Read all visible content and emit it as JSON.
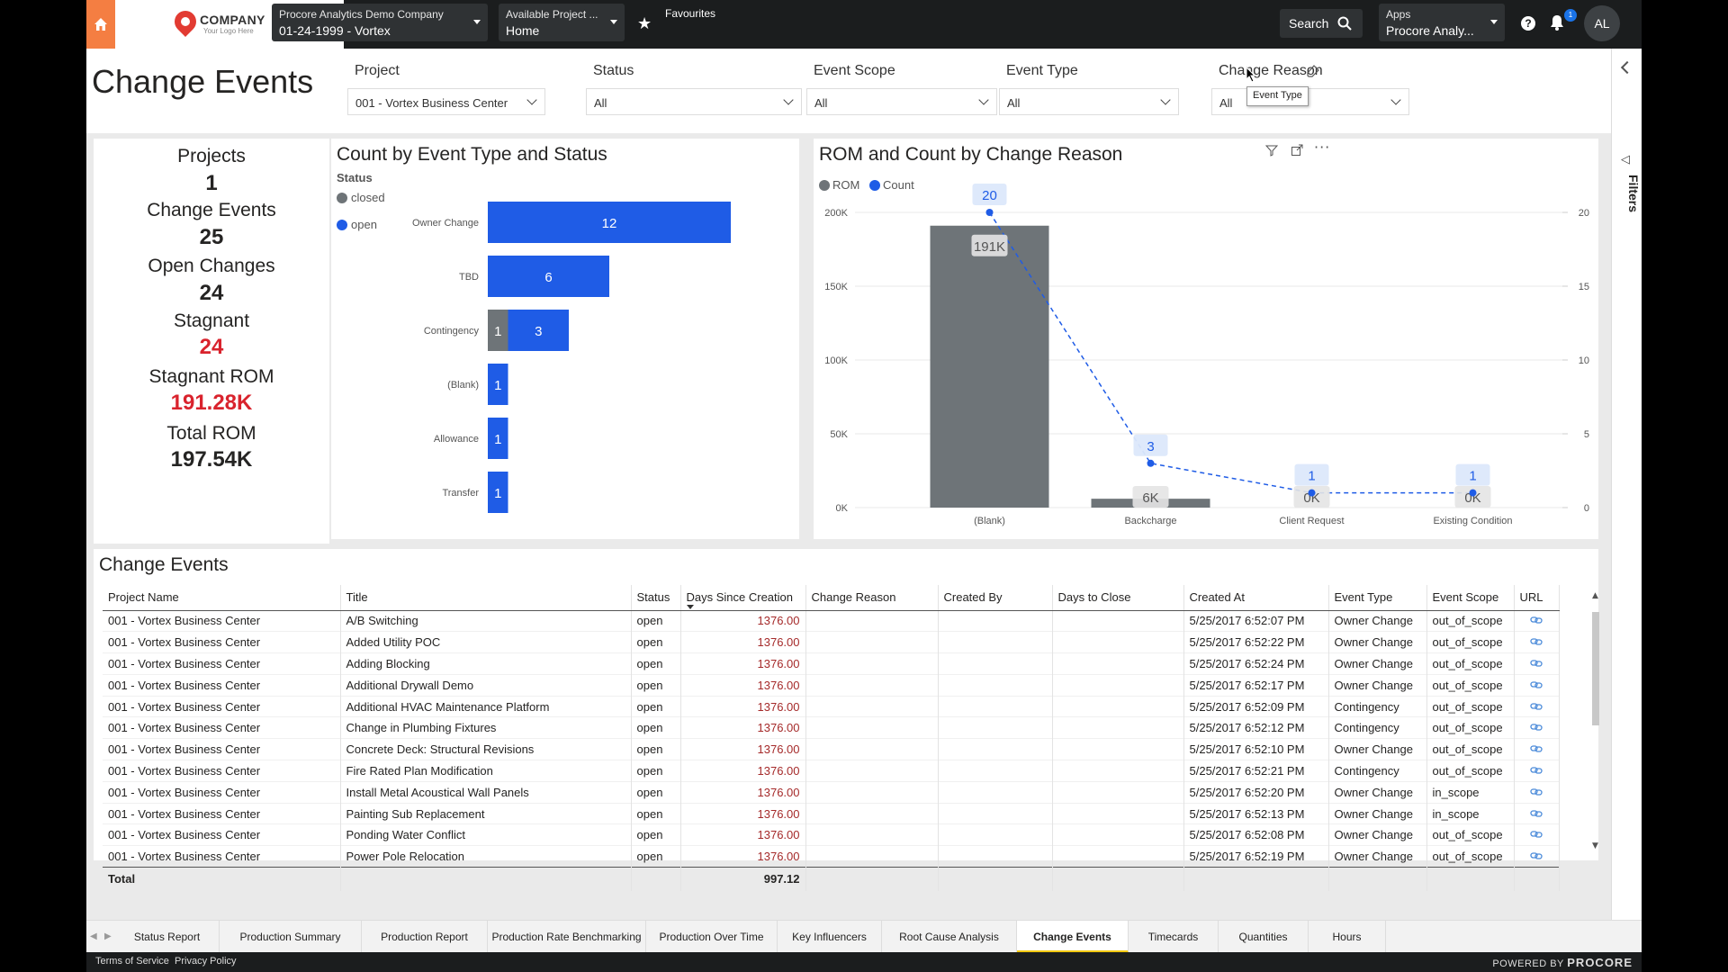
{
  "header": {
    "company_logo": "COMPANY",
    "company_logo_sub": "Your Logo Here",
    "company_dd": {
      "line1": "Procore Analytics Demo Company",
      "line2": "01-24-1999 - Vortex"
    },
    "project_dd": {
      "line1": "Available Project ...",
      "line2": "Home"
    },
    "favourites": "Favourites",
    "search": "Search",
    "apps_dd": {
      "line1": "Apps",
      "line2": "Procore Analy..."
    },
    "help": "?",
    "notifications_count": "1",
    "avatar_initials": "AL",
    "brand_color": "#f47e42"
  },
  "page_title": "Change Events",
  "slicers": [
    {
      "label": "Project",
      "value": "001 - Vortex Business Center"
    },
    {
      "label": "Status",
      "value": "All"
    },
    {
      "label": "Event Scope",
      "value": "All"
    },
    {
      "label": "Event Type",
      "value": "All"
    },
    {
      "label": "Change Reason",
      "value": "All"
    }
  ],
  "tooltip": "Event Type",
  "kpis": [
    {
      "label": "Projects",
      "value": "1",
      "highlight": false
    },
    {
      "label": "Change Events",
      "value": "25",
      "highlight": false
    },
    {
      "label": "Open Changes",
      "value": "24",
      "highlight": false
    },
    {
      "label": "Stagnant",
      "value": "24",
      "highlight": true
    },
    {
      "label": "Stagnant ROM",
      "value": "191.28K",
      "highlight": true
    },
    {
      "label": "Total ROM",
      "value": "197.54K",
      "highlight": false
    }
  ],
  "filters_pane_label": "Filters",
  "chart_data": [
    {
      "type": "bar",
      "orientation": "horizontal",
      "stacked": true,
      "title": "Count by Event Type and Status",
      "legend_title": "Status",
      "categories": [
        "Owner Change",
        "TBD",
        "Contingency",
        "(Blank)",
        "Allowance",
        "Transfer"
      ],
      "series": [
        {
          "name": "closed",
          "color": "#6e7478",
          "values": [
            0,
            0,
            1,
            0,
            0,
            0
          ]
        },
        {
          "name": "open",
          "color": "#1f5ce6",
          "values": [
            12,
            6,
            3,
            1,
            1,
            1
          ]
        }
      ]
    },
    {
      "type": "bar",
      "combo_line": true,
      "title": "ROM and Count by Change Reason",
      "categories": [
        "(Blank)",
        "Backcharge",
        "Client Request",
        "Existing Condition"
      ],
      "series": [
        {
          "name": "ROM",
          "color": "#6e7478",
          "axis": "left",
          "values": [
            191000,
            6000,
            0,
            0
          ],
          "labels": [
            "191K",
            "6K",
            "0K",
            "0K"
          ]
        },
        {
          "name": "Count",
          "color": "#1f5ce6",
          "axis": "right",
          "values": [
            20,
            3,
            1,
            1
          ],
          "labels": [
            "20",
            "3",
            "1",
            "1"
          ]
        }
      ],
      "y_left_ticks": [
        "0K",
        "50K",
        "100K",
        "150K",
        "200K"
      ],
      "y_left_range": [
        0,
        200000
      ],
      "y_right_ticks": [
        "0",
        "5",
        "10",
        "15",
        "20"
      ],
      "y_right_range": [
        0,
        20
      ]
    }
  ],
  "table": {
    "title": "Change Events",
    "columns": [
      "Project Name",
      "Title",
      "Status",
      "Days Since Creation",
      "Change Reason",
      "Created By",
      "Days to Close",
      "Created At",
      "Event Type",
      "Event Scope",
      "URL"
    ],
    "rows": [
      [
        "001 - Vortex Business Center",
        "A/B Switching",
        "open",
        "1376.00",
        "",
        "",
        "",
        "5/25/2017 6:52:07 PM",
        "Owner Change",
        "out_of_scope"
      ],
      [
        "001 - Vortex Business Center",
        "Added Utility POC",
        "open",
        "1376.00",
        "",
        "",
        "",
        "5/25/2017 6:52:22 PM",
        "Owner Change",
        "out_of_scope"
      ],
      [
        "001 - Vortex Business Center",
        "Adding Blocking",
        "open",
        "1376.00",
        "",
        "",
        "",
        "5/25/2017 6:52:24 PM",
        "Owner Change",
        "out_of_scope"
      ],
      [
        "001 - Vortex Business Center",
        "Additional Drywall Demo",
        "open",
        "1376.00",
        "",
        "",
        "",
        "5/25/2017 6:52:17 PM",
        "Owner Change",
        "out_of_scope"
      ],
      [
        "001 - Vortex Business Center",
        "Additional HVAC Maintenance Platform",
        "open",
        "1376.00",
        "",
        "",
        "",
        "5/25/2017 6:52:09 PM",
        "Contingency",
        "out_of_scope"
      ],
      [
        "001 - Vortex Business Center",
        "Change in Plumbing Fixtures",
        "open",
        "1376.00",
        "",
        "",
        "",
        "5/25/2017 6:52:12 PM",
        "Contingency",
        "out_of_scope"
      ],
      [
        "001 - Vortex Business Center",
        "Concrete Deck: Structural Revisions",
        "open",
        "1376.00",
        "",
        "",
        "",
        "5/25/2017 6:52:10 PM",
        "Owner Change",
        "out_of_scope"
      ],
      [
        "001 - Vortex Business Center",
        "Fire Rated Plan Modification",
        "open",
        "1376.00",
        "",
        "",
        "",
        "5/25/2017 6:52:21 PM",
        "Contingency",
        "out_of_scope"
      ],
      [
        "001 - Vortex Business Center",
        "Install Metal Acoustical Wall Panels",
        "open",
        "1376.00",
        "",
        "",
        "",
        "5/25/2017 6:52:20 PM",
        "Owner Change",
        "in_scope"
      ],
      [
        "001 - Vortex Business Center",
        "Painting Sub Replacement",
        "open",
        "1376.00",
        "",
        "",
        "",
        "5/25/2017 6:52:13 PM",
        "Owner Change",
        "in_scope"
      ],
      [
        "001 - Vortex Business Center",
        "Ponding Water Conflict",
        "open",
        "1376.00",
        "",
        "",
        "",
        "5/25/2017 6:52:08 PM",
        "Owner Change",
        "out_of_scope"
      ],
      [
        "001 - Vortex Business Center",
        "Power Pole Relocation",
        "open",
        "1376.00",
        "",
        "",
        "",
        "5/25/2017 6:52:19 PM",
        "Owner Change",
        "out_of_scope"
      ]
    ],
    "total_label": "Total",
    "total_days": "997.12",
    "url_icon": "link-icon"
  },
  "tabs": [
    {
      "label": "Status Report",
      "active": false
    },
    {
      "label": "Production Summary",
      "active": false
    },
    {
      "label": "Production Report",
      "active": false
    },
    {
      "label": "Production Rate Benchmarking",
      "active": false
    },
    {
      "label": "Production Over Time",
      "active": false
    },
    {
      "label": "Key Influencers",
      "active": false
    },
    {
      "label": "Root Cause Analysis",
      "active": false
    },
    {
      "label": "Change Events",
      "active": true
    },
    {
      "label": "Timecards",
      "active": false
    },
    {
      "label": "Quantities",
      "active": false
    },
    {
      "label": "Hours",
      "active": false
    }
  ],
  "footer": {
    "terms": "Terms of Service",
    "privacy": "Privacy Policy",
    "powered_by": "POWERED BY",
    "brand": "PROCORE"
  }
}
